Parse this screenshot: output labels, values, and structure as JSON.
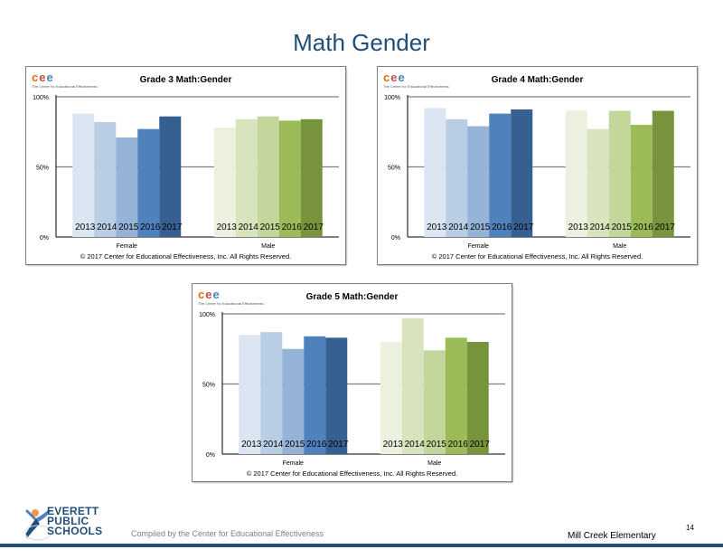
{
  "page": {
    "title": "Math Gender",
    "footer_org_lines": [
      "EVERETT",
      "PUBLIC",
      "SCHOOLS"
    ],
    "compiled_by": "Compiled by the Center for Educational Effectiveness",
    "school": "Mill Creek Elementary",
    "page_number": "14",
    "logo_letters": [
      "c",
      "e",
      "e"
    ],
    "logo_tagline": "The Center for Educational Effectiveness",
    "copyright": "© 2017 Center for Educational Effectiveness, Inc. All Rights Reserved."
  },
  "colors": {
    "title": "#1f4e79",
    "footer_line": "#1f4e79",
    "female_series": [
      "#dce6f2",
      "#b9cde5",
      "#95b3d7",
      "#4f81bd",
      "#376092"
    ],
    "male_series": [
      "#ebf1de",
      "#d7e4bd",
      "#c3d69b",
      "#9bbb59",
      "#77933c"
    ],
    "logo_letters": [
      "#e36c09",
      "#c0504d",
      "#4f81bd"
    ]
  },
  "chart_data": [
    {
      "type": "bar",
      "title": "Grade 3 Math:Gender",
      "categories": [
        "Female",
        "Male"
      ],
      "series_labels": [
        "2013",
        "2014",
        "2015",
        "2016",
        "2017"
      ],
      "values": {
        "Female": [
          88,
          82,
          71,
          77,
          86
        ],
        "Male": [
          78,
          84,
          86,
          83,
          84
        ]
      },
      "yticks": [
        "0%",
        "50%",
        "100%"
      ],
      "ylim": [
        0,
        100
      ]
    },
    {
      "type": "bar",
      "title": "Grade 4 Math:Gender",
      "categories": [
        "Female",
        "Male"
      ],
      "series_labels": [
        "2013",
        "2014",
        "2015",
        "2016",
        "2017"
      ],
      "values": {
        "Female": [
          92,
          84,
          79,
          88,
          91
        ],
        "Male": [
          90,
          77,
          90,
          80,
          90
        ]
      },
      "yticks": [
        "0%",
        "50%",
        "100%"
      ],
      "ylim": [
        0,
        100
      ]
    },
    {
      "type": "bar",
      "title": "Grade 5 Math:Gender",
      "categories": [
        "Female",
        "Male"
      ],
      "series_labels": [
        "2013",
        "2014",
        "2015",
        "2016",
        "2017"
      ],
      "values": {
        "Female": [
          85,
          87,
          75,
          84,
          83
        ],
        "Male": [
          80,
          97,
          74,
          83,
          80
        ]
      },
      "yticks": [
        "0%",
        "50%",
        "100%"
      ],
      "ylim": [
        0,
        100
      ]
    }
  ]
}
